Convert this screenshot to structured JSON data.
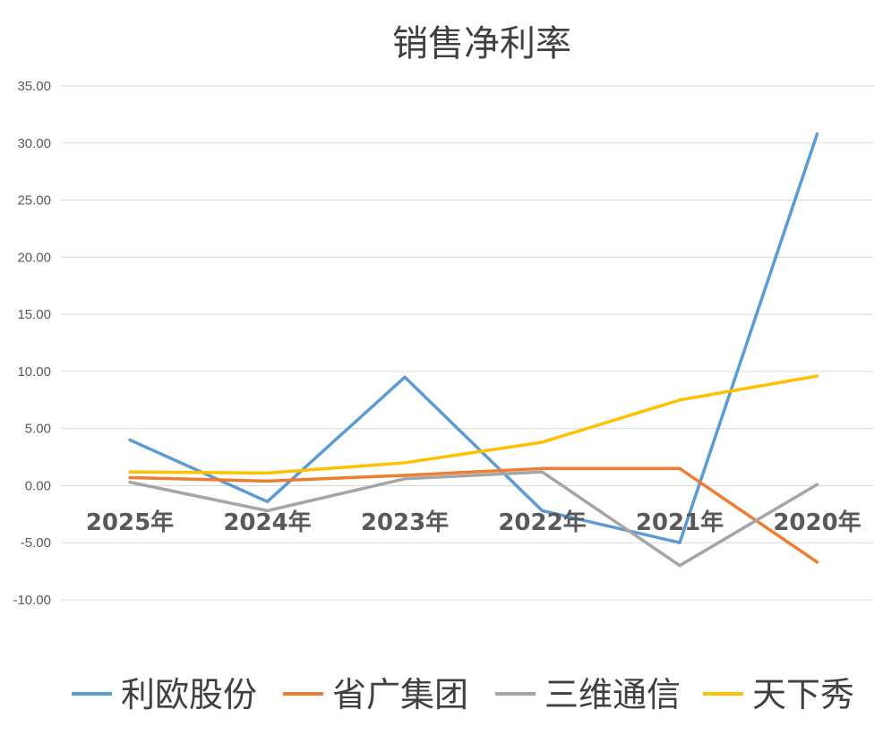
{
  "chart_data": {
    "type": "line",
    "title": "销售净利率",
    "categories": [
      "2025年",
      "2024年",
      "2023年",
      "2022年",
      "2021年",
      "2020年"
    ],
    "ylim": [
      -10,
      35
    ],
    "yticks": [
      "35.00",
      "30.00",
      "25.00",
      "20.00",
      "15.00",
      "10.00",
      "5.00",
      "0.00",
      "-5.00",
      "-10.00"
    ],
    "ytick_values": [
      35,
      30,
      25,
      20,
      15,
      10,
      5,
      0,
      -5,
      -10
    ],
    "grid": true,
    "legend_position": "bottom",
    "series": [
      {
        "name": "利欧股份",
        "color": "#5b9bd5",
        "values": [
          4.0,
          -1.4,
          9.5,
          -2.2,
          -5.0,
          30.8
        ]
      },
      {
        "name": "省广集团",
        "color": "#ed7d31",
        "values": [
          0.7,
          0.4,
          0.9,
          1.5,
          1.5,
          -6.7
        ]
      },
      {
        "name": "三维通信",
        "color": "#a5a5a5",
        "values": [
          0.3,
          -2.2,
          0.6,
          1.2,
          -7.0,
          0.1
        ]
      },
      {
        "name": "天下秀",
        "color": "#ffc000",
        "values": [
          1.2,
          1.1,
          2.0,
          3.8,
          7.5,
          9.6
        ]
      }
    ]
  }
}
